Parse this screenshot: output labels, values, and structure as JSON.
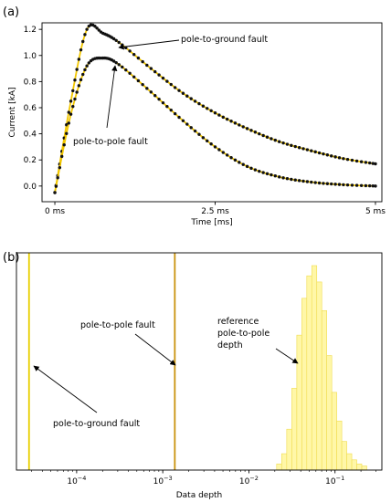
{
  "chart_data": [
    {
      "type": "line",
      "panel_label": "(a)",
      "xlabel": "Time [ms]",
      "ylabel": "Current [kA]",
      "xlim": [
        -0.2,
        5.1
      ],
      "ylim": [
        -0.12,
        1.25
      ],
      "x_ticks": [
        {
          "value": 0,
          "label": "0 ms"
        },
        {
          "value": 2.5,
          "label": "2.5 ms"
        },
        {
          "value": 5,
          "label": "5 ms"
        }
      ],
      "y_ticks": [
        {
          "value": 0.0,
          "label": "0.0"
        },
        {
          "value": 0.2,
          "label": "0.2"
        },
        {
          "value": 0.4,
          "label": "0.4"
        },
        {
          "value": 0.6,
          "label": "0.6"
        },
        {
          "value": 0.8,
          "label": "0.8"
        },
        {
          "value": 1.0,
          "label": "1.0"
        },
        {
          "value": 1.2,
          "label": "1.2"
        }
      ],
      "grid": false,
      "series": [
        {
          "name": "pole-to-ground fault",
          "line_color": "#f2c700",
          "marker_color": "#111111",
          "x": [
            0,
            0.25,
            0.5,
            0.75,
            1.0,
            1.5,
            2.0,
            2.5,
            3.0,
            3.5,
            4.0,
            4.5,
            5.0
          ],
          "y": [
            -0.05,
            0.65,
            1.2,
            1.17,
            1.1,
            0.9,
            0.71,
            0.56,
            0.44,
            0.34,
            0.27,
            0.21,
            0.17
          ]
        },
        {
          "name": "pole-to-pole fault",
          "line_color": "#f2c700",
          "marker_color": "#111111",
          "x": [
            0,
            0.25,
            0.5,
            0.75,
            1.0,
            1.5,
            2.0,
            2.5,
            3.0,
            3.5,
            4.0,
            4.5,
            5.0
          ],
          "y": [
            -0.05,
            0.55,
            0.92,
            0.98,
            0.93,
            0.72,
            0.5,
            0.3,
            0.15,
            0.07,
            0.03,
            0.01,
            0.0
          ]
        }
      ],
      "annotations": [
        {
          "text": "pole-to-ground fault",
          "target": [
            0.9,
            1.02
          ]
        },
        {
          "text": "pole-to-pole fault",
          "target": [
            0.85,
            0.93
          ]
        }
      ]
    },
    {
      "type": "histogram",
      "panel_label": "(b)",
      "xlabel": "Data depth",
      "xscale": "log",
      "xlim": [
        2e-05,
        0.35
      ],
      "x_ticks": [
        {
          "value": 0.0001,
          "base": "10",
          "exp": "−4"
        },
        {
          "value": 0.001,
          "base": "10",
          "exp": "−3"
        },
        {
          "value": 0.01,
          "base": "10",
          "exp": "−2"
        },
        {
          "value": 0.1,
          "base": "10",
          "exp": "−1"
        }
      ],
      "vlines": [
        {
          "value": 2.8e-05,
          "color": "#e8d000",
          "label": "pole-to-ground fault"
        },
        {
          "value": 0.00138,
          "color": "#c9920c",
          "label": "pole-to-pole fault"
        }
      ],
      "histogram": {
        "label": "reference pole-to-pole depth",
        "fill_color": "#fff7a8",
        "edge_color": "#f0dc50",
        "bin_edges": [
          0.021,
          0.024,
          0.0275,
          0.0315,
          0.036,
          0.0412,
          0.047,
          0.0537,
          0.0614,
          0.0702,
          0.0802,
          0.0917,
          0.1048,
          0.1198,
          0.137,
          0.1566,
          0.179,
          0.2046,
          0.234
        ],
        "counts": [
          3,
          8,
          20,
          40,
          66,
          84,
          95,
          100,
          92,
          78,
          56,
          38,
          24,
          14,
          8,
          5,
          3,
          2
        ]
      },
      "annotations": [
        {
          "text": "pole-to-pole fault",
          "target_value": 0.00138
        },
        {
          "text": "pole-to-ground fault",
          "target_value": 2.8e-05
        },
        {
          "text": "reference pole-to-pole depth",
          "target_value": 0.032
        }
      ]
    }
  ],
  "annotation_lines": {
    "a_ground": "pole-to-ground fault",
    "a_pole": "pole-to-pole fault",
    "b_pole": "pole-to-pole fault",
    "b_ground": "pole-to-ground fault",
    "b_ref_1": "reference",
    "b_ref_2": "pole-to-pole",
    "b_ref_3": "depth"
  }
}
